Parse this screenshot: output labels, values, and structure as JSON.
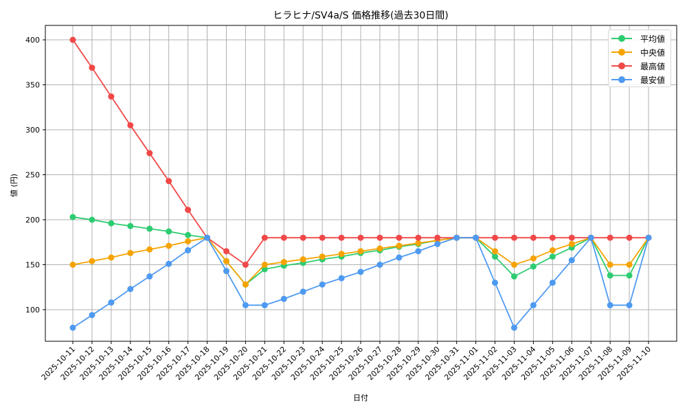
{
  "chart_data": {
    "type": "line",
    "title": "ヒラヒナ/SV4a/S 価格推移(過去30日間)",
    "xlabel": "日付",
    "ylabel": "値 (円)",
    "ylim": [
      65,
      416
    ],
    "yticks": [
      100,
      150,
      200,
      250,
      300,
      350,
      400
    ],
    "grid": true,
    "legend_position": "upper right",
    "x": [
      "2025-10-11",
      "2025-10-12",
      "2025-10-13",
      "2025-10-14",
      "2025-10-15",
      "2025-10-16",
      "2025-10-17",
      "2025-10-18",
      "2025-10-19",
      "2025-10-20",
      "2025-10-21",
      "2025-10-22",
      "2025-10-23",
      "2025-10-24",
      "2025-10-25",
      "2025-10-26",
      "2025-10-27",
      "2025-10-28",
      "2025-10-29",
      "2025-10-30",
      "2025-10-31",
      "2025-11-01",
      "2025-11-02",
      "2025-11-03",
      "2025-11-04",
      "2025-11-05",
      "2025-11-06",
      "2025-11-07",
      "2025-11-08",
      "2025-11-09",
      "2025-11-10"
    ],
    "series": [
      {
        "name": "平均値",
        "color": "#2ecc71",
        "values": [
          203,
          200,
          196,
          193,
          190,
          187,
          183,
          180,
          154,
          128,
          145,
          149,
          152,
          156,
          159,
          163,
          166,
          170,
          173,
          177,
          180,
          180,
          159,
          137,
          148,
          159,
          169,
          180,
          138,
          138,
          180
        ]
      },
      {
        "name": "中央値",
        "color": "#f5a300",
        "values": [
          150,
          154,
          158,
          163,
          167,
          171,
          176,
          180,
          154,
          128,
          150,
          153,
          156,
          159,
          162,
          165,
          168,
          171,
          174,
          177,
          180,
          180,
          165,
          150,
          157,
          166,
          173,
          180,
          150,
          150,
          180
        ]
      },
      {
        "name": "最高値",
        "color": "#f04848",
        "values": [
          400,
          369,
          337,
          305,
          274,
          243,
          211,
          180,
          165,
          150,
          180,
          180,
          180,
          180,
          180,
          180,
          180,
          180,
          180,
          180,
          180,
          180,
          180,
          180,
          180,
          180,
          180,
          180,
          180,
          180,
          180
        ]
      },
      {
        "name": "最安値",
        "color": "#4e9af1",
        "values": [
          80,
          94,
          108,
          123,
          137,
          151,
          166,
          180,
          143,
          105,
          105,
          112,
          120,
          128,
          135,
          142,
          150,
          158,
          165,
          173,
          180,
          180,
          130,
          80,
          105,
          130,
          155,
          180,
          105,
          105,
          180
        ]
      }
    ]
  }
}
